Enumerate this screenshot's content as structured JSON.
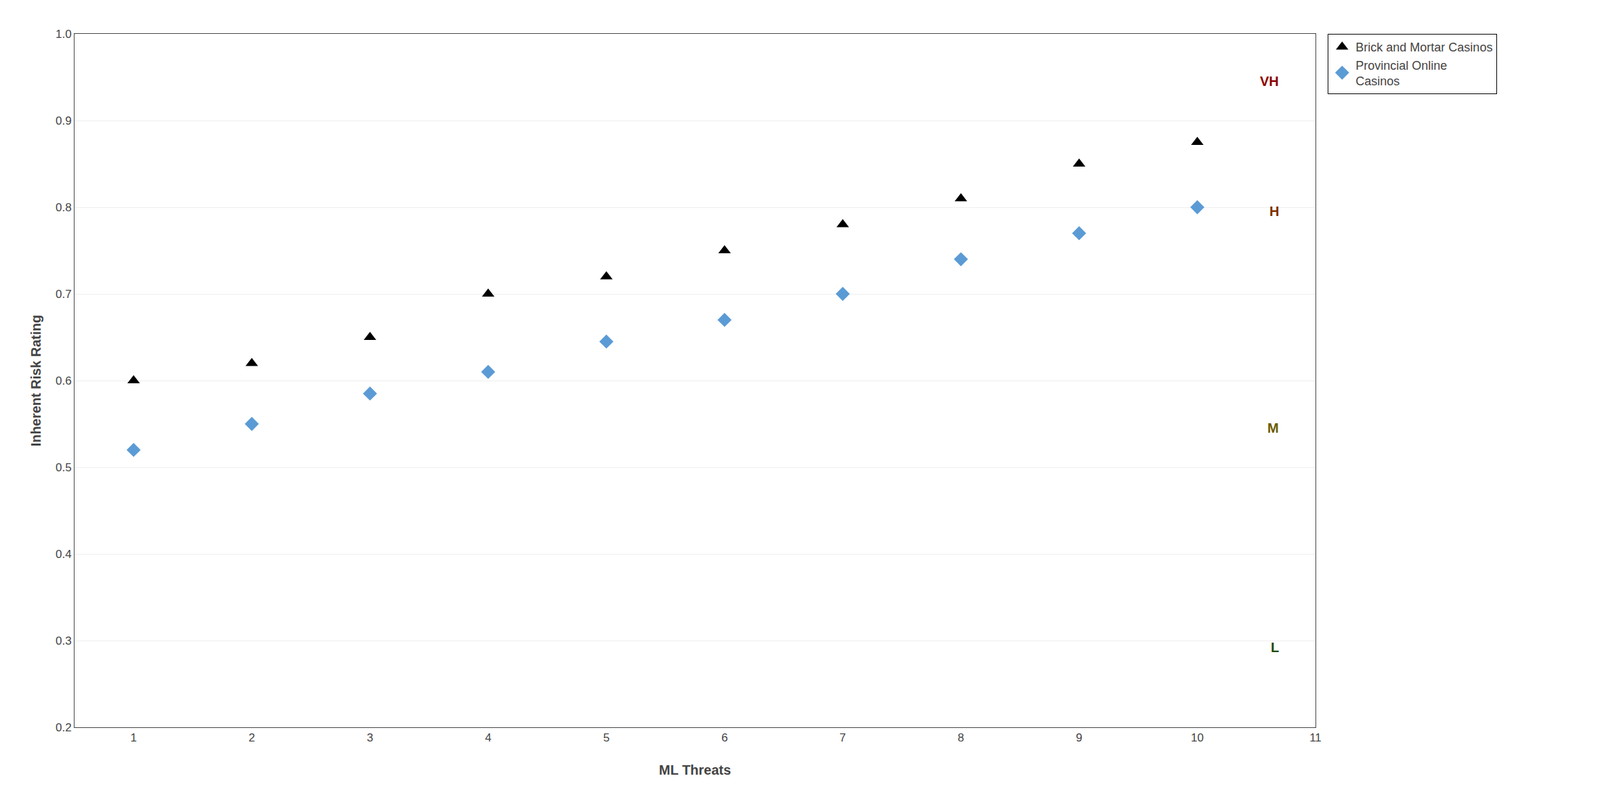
{
  "chart_data": {
    "type": "scatter",
    "xlabel": "ML Threats",
    "ylabel": "Inherent Risk Rating",
    "x": [
      1,
      2,
      3,
      4,
      5,
      6,
      7,
      8,
      9,
      10
    ],
    "series": [
      {
        "name": "Brick and Mortar Casinos",
        "color": "#000000",
        "marker": "triangle-up",
        "values": [
          0.6,
          0.62,
          0.65,
          0.7,
          0.72,
          0.75,
          0.78,
          0.81,
          0.85,
          0.875
        ]
      },
      {
        "name": "Provincial Online\nCasinos",
        "color": "#5B9BD5",
        "marker": "diamond",
        "values": [
          0.52,
          0.55,
          0.585,
          0.61,
          0.645,
          0.67,
          0.7,
          0.74,
          0.77,
          0.8
        ]
      }
    ],
    "annotations": [
      {
        "text": "VH",
        "x": 10.7,
        "y": 0.945,
        "color": "#8B0000"
      },
      {
        "text": "H",
        "x": 10.7,
        "y": 0.795,
        "color": "#7B3000"
      },
      {
        "text": "M",
        "x": 10.7,
        "y": 0.545,
        "color": "#6B5A00"
      },
      {
        "text": "L",
        "x": 10.7,
        "y": 0.292,
        "color": "#1A4A00"
      }
    ],
    "xlim": [
      0.5,
      11
    ],
    "ylim": [
      0.2,
      1.0
    ],
    "xticks": [
      1,
      2,
      3,
      4,
      5,
      6,
      7,
      8,
      9,
      10,
      11
    ],
    "yticks": [
      0.2,
      0.3,
      0.4,
      0.5,
      0.6,
      0.7,
      0.8,
      0.9,
      {
        "value": 1.0,
        "label": "1.0"
      }
    ],
    "grid": true,
    "legend": "right"
  }
}
